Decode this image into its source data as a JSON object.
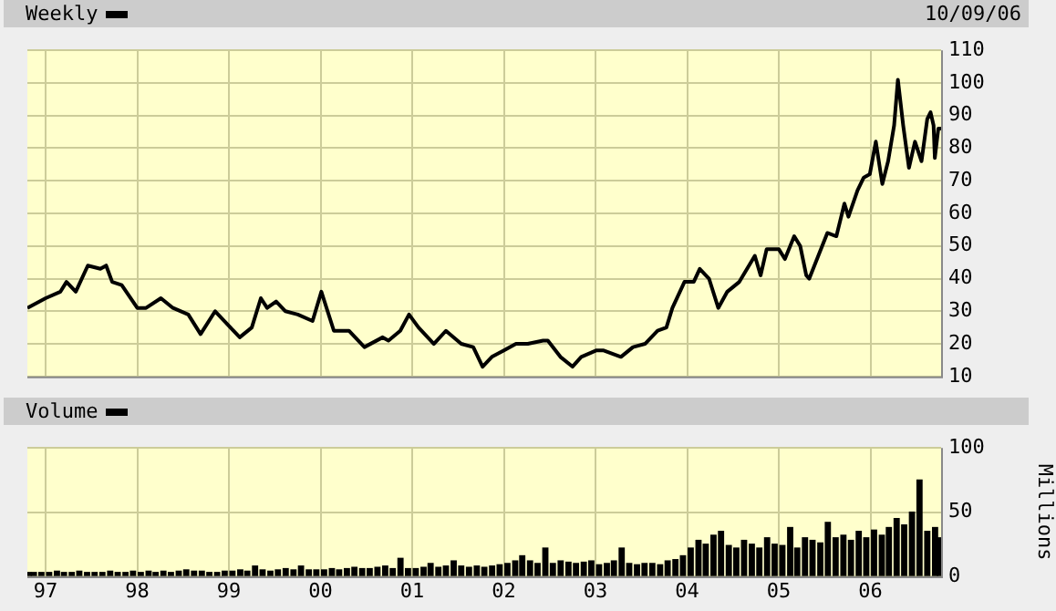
{
  "chart_data": [
    {
      "type": "line",
      "xlim": [
        "1996-10-20",
        "2006-10-09"
      ],
      "xticks": [
        {
          "value": "1997-01-01",
          "label": null
        },
        {
          "value": "1998-01-01",
          "label": null
        },
        {
          "value": "1999-01-01",
          "label": null
        },
        {
          "value": "2000-01-01",
          "label": null
        },
        {
          "value": "2001-01-01",
          "label": null
        },
        {
          "value": "2002-01-01",
          "label": null
        },
        {
          "value": "2003-01-01",
          "label": null
        },
        {
          "value": "2004-01-01",
          "label": null
        },
        {
          "value": "2005-01-01",
          "label": null
        },
        {
          "value": "2006-01-01",
          "label": null
        }
      ],
      "ylim": [
        10,
        110
      ],
      "yticks": [
        10,
        20,
        30,
        40,
        50,
        60,
        70,
        80,
        90,
        100,
        110
      ],
      "grid": true,
      "legend": "top left",
      "tick_labels": "y",
      "annotations": [
        "10/09/06"
      ],
      "series": [
        {
          "name": "Weekly",
          "color": "#000000",
          "x": [
            "1996-10-20",
            "1997-01-01",
            "1997-03-01",
            "1997-03-25",
            "1997-05-01",
            "1997-06-18",
            "1997-08-07",
            "1997-08-30",
            "1997-09-23",
            "1997-10-31",
            "1998-01-01",
            "1998-02-05",
            "1998-04-05",
            "1998-05-23",
            "1998-07-23",
            "1998-09-10",
            "1998-11-07",
            "1999-01-19",
            "1999-02-13",
            "1999-04-02",
            "1999-05-08",
            "1999-06-02",
            "1999-07-08",
            "1999-08-14",
            "1999-10-02",
            "1999-11-30",
            "2000-01-04",
            "2000-02-23",
            "2000-04-23",
            "2000-06-24",
            "2000-09-05",
            "2000-09-28",
            "2000-11-14",
            "2000-12-19",
            "2001-01-26",
            "2001-03-28",
            "2001-05-15",
            "2001-07-15",
            "2001-09-01",
            "2001-10-08",
            "2001-11-14",
            "2002-01-01",
            "2002-02-18",
            "2002-04-06",
            "2002-06-06",
            "2002-06-25",
            "2002-08-14",
            "2002-10-01",
            "2002-11-05",
            "2003-01-05",
            "2003-01-31",
            "2003-04-12",
            "2003-05-30",
            "2003-07-17",
            "2003-09-05",
            "2003-10-10",
            "2003-11-03",
            "2003-12-21",
            "2004-01-27",
            "2004-02-20",
            "2004-03-28",
            "2004-05-04",
            "2004-06-09",
            "2004-07-27",
            "2004-09-27",
            "2004-10-20",
            "2004-11-13",
            "2005-01-01",
            "2005-01-25",
            "2005-03-03",
            "2005-03-27",
            "2005-04-20",
            "2005-05-02",
            "2005-06-07",
            "2005-07-13",
            "2005-08-18",
            "2005-09-19",
            "2005-10-05",
            "2005-11-10",
            "2005-12-05",
            "2005-12-29",
            "2006-01-22",
            "2006-02-17",
            "2006-03-12",
            "2006-04-05",
            "2006-04-20",
            "2006-05-11",
            "2006-06-03",
            "2006-06-27",
            "2006-07-23",
            "2006-08-15",
            "2006-08-28",
            "2006-09-09",
            "2006-09-14",
            "2006-09-28",
            "2006-10-09"
          ],
          "values": [
            31,
            34,
            36,
            39,
            36,
            44,
            43,
            44,
            39,
            38,
            31,
            31,
            34,
            31,
            29,
            23,
            30,
            24,
            22,
            25,
            34,
            31,
            33,
            30,
            29,
            27,
            36,
            24,
            24,
            19,
            22,
            21,
            24,
            29,
            25,
            20,
            24,
            20,
            19,
            13,
            16,
            18,
            20,
            20,
            21,
            21,
            16,
            13,
            16,
            18,
            18,
            16,
            19,
            20,
            24,
            25,
            31,
            39,
            39,
            43,
            40,
            31,
            36,
            39,
            47,
            41,
            49,
            49,
            46,
            53,
            50,
            41,
            40,
            47,
            54,
            53,
            63,
            59,
            67,
            71,
            72,
            82,
            69,
            76,
            87,
            101,
            87,
            74,
            82,
            76,
            89,
            91,
            87,
            77,
            86,
            86
          ]
        }
      ]
    },
    {
      "type": "bar",
      "xlim": [
        "1996-10-20",
        "2006-10-09"
      ],
      "xticks": [
        {
          "value": "1997-01-01",
          "label": "97"
        },
        {
          "value": "1998-01-01",
          "label": "98"
        },
        {
          "value": "1999-01-01",
          "label": "99"
        },
        {
          "value": "2000-01-01",
          "label": "00"
        },
        {
          "value": "2001-01-01",
          "label": "01"
        },
        {
          "value": "2002-01-01",
          "label": "02"
        },
        {
          "value": "2003-01-01",
          "label": "03"
        },
        {
          "value": "2004-01-01",
          "label": "04"
        },
        {
          "value": "2005-01-01",
          "label": "05"
        },
        {
          "value": "2006-01-01",
          "label": "06"
        }
      ],
      "ylim": [
        0,
        100
      ],
      "yticks": [
        0,
        50,
        100
      ],
      "ylabel": "Millions",
      "grid": true,
      "legend": "top left",
      "series": [
        {
          "name": "Volume",
          "color": "#000000",
          "x": [
            "1996-10-25",
            "1996-11-15",
            "1996-12-15",
            "1997-01-15",
            "1997-02-15",
            "1997-03-15",
            "1997-04-15",
            "1997-05-15",
            "1997-06-15",
            "1997-07-15",
            "1997-08-15",
            "1997-09-15",
            "1997-10-15",
            "1997-11-15",
            "1997-12-15",
            "1998-01-15",
            "1998-02-15",
            "1998-03-15",
            "1998-04-15",
            "1998-05-15",
            "1998-06-15",
            "1998-07-15",
            "1998-08-15",
            "1998-09-15",
            "1998-10-15",
            "1998-11-15",
            "1998-12-15",
            "1999-01-15",
            "1999-02-15",
            "1999-03-15",
            "1999-04-15",
            "1999-05-15",
            "1999-06-15",
            "1999-07-15",
            "1999-08-15",
            "1999-09-15",
            "1999-10-15",
            "1999-11-15",
            "1999-12-15",
            "2000-01-15",
            "2000-02-15",
            "2000-03-15",
            "2000-04-15",
            "2000-05-15",
            "2000-06-15",
            "2000-07-15",
            "2000-08-15",
            "2000-09-15",
            "2000-10-15",
            "2000-11-15",
            "2000-12-15",
            "2001-01-15",
            "2001-02-15",
            "2001-03-15",
            "2001-04-15",
            "2001-05-15",
            "2001-06-15",
            "2001-07-15",
            "2001-08-15",
            "2001-09-15",
            "2001-10-15",
            "2001-11-15",
            "2001-12-15",
            "2002-01-15",
            "2002-02-15",
            "2002-03-15",
            "2002-04-15",
            "2002-05-15",
            "2002-06-15",
            "2002-07-15",
            "2002-08-15",
            "2002-09-15",
            "2002-10-15",
            "2002-11-15",
            "2002-12-15",
            "2003-01-15",
            "2003-02-15",
            "2003-03-15",
            "2003-04-15",
            "2003-05-15",
            "2003-06-15",
            "2003-07-15",
            "2003-08-15",
            "2003-09-15",
            "2003-10-15",
            "2003-11-15",
            "2003-12-15",
            "2004-01-15",
            "2004-02-15",
            "2004-03-15",
            "2004-04-15",
            "2004-05-15",
            "2004-06-15",
            "2004-07-15",
            "2004-08-15",
            "2004-09-15",
            "2004-10-15",
            "2004-11-15",
            "2004-12-15",
            "2005-01-15",
            "2005-02-15",
            "2005-03-15",
            "2005-04-15",
            "2005-05-15",
            "2005-06-15",
            "2005-07-15",
            "2005-08-15",
            "2005-09-15",
            "2005-10-15",
            "2005-11-15",
            "2005-12-15",
            "2006-01-15",
            "2006-02-15",
            "2006-03-15",
            "2006-04-15",
            "2006-05-15",
            "2006-06-15",
            "2006-07-15",
            "2006-08-15",
            "2006-09-15",
            "2006-10-05"
          ],
          "values": [
            3,
            3,
            3,
            3,
            4,
            3,
            3,
            4,
            3,
            3,
            3,
            4,
            3,
            3,
            4,
            3,
            4,
            3,
            4,
            3,
            4,
            5,
            4,
            4,
            3,
            3,
            4,
            4,
            5,
            4,
            8,
            5,
            4,
            5,
            6,
            5,
            8,
            5,
            5,
            5,
            6,
            5,
            6,
            7,
            6,
            6,
            7,
            8,
            6,
            14,
            6,
            6,
            7,
            10,
            7,
            8,
            12,
            8,
            7,
            8,
            7,
            8,
            9,
            10,
            12,
            16,
            12,
            10,
            22,
            10,
            12,
            11,
            10,
            11,
            12,
            9,
            10,
            12,
            22,
            10,
            9,
            10,
            10,
            9,
            12,
            13,
            16,
            22,
            28,
            25,
            32,
            35,
            24,
            22,
            28,
            25,
            22,
            30,
            25,
            24,
            38,
            22,
            30,
            28,
            26,
            42,
            30,
            32,
            28,
            35,
            30,
            36,
            32,
            38,
            45,
            40,
            50,
            75,
            35,
            38,
            30
          ]
        }
      ]
    }
  ]
}
